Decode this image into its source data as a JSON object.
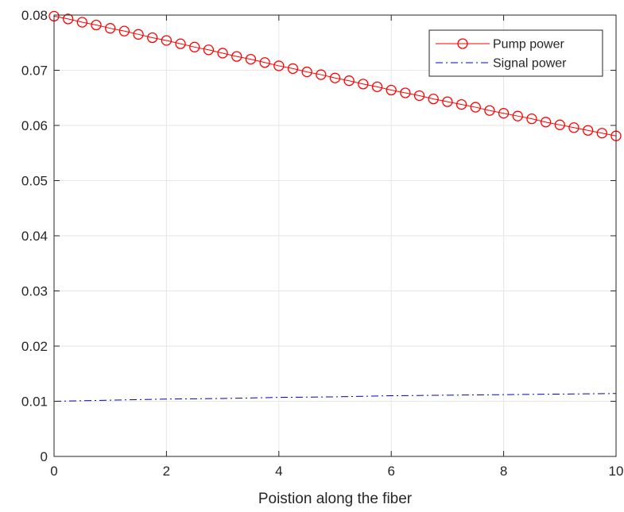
{
  "chart_data": {
    "type": "line",
    "title": "",
    "xlabel": "Poistion along the fiber",
    "ylabel": "",
    "xlim": [
      0,
      10
    ],
    "ylim": [
      0,
      0.08
    ],
    "xticks": [
      0,
      2,
      4,
      6,
      8,
      10
    ],
    "xtick_labels": [
      "0",
      "2",
      "4",
      "6",
      "8",
      "10"
    ],
    "yticks": [
      0,
      0.01,
      0.02,
      0.03,
      0.04,
      0.05,
      0.06,
      0.07,
      0.08
    ],
    "ytick_labels": [
      "0",
      "0.01",
      "0.02",
      "0.03",
      "0.04",
      "0.05",
      "0.06",
      "0.07",
      "0.08"
    ],
    "grid": true,
    "legend_position": "top-right",
    "series": [
      {
        "name": "Pump power",
        "color": "#ff0000",
        "line_style": "solid",
        "marker": "circle",
        "x": [
          0,
          0.25,
          0.5,
          0.75,
          1,
          1.25,
          1.5,
          1.75,
          2,
          2.25,
          2.5,
          2.75,
          3,
          3.25,
          3.5,
          3.75,
          4,
          4.25,
          4.5,
          4.75,
          5,
          5.25,
          5.5,
          5.75,
          6,
          6.25,
          6.5,
          6.75,
          7,
          7.25,
          7.5,
          7.75,
          8,
          8.25,
          8.5,
          8.75,
          9,
          9.25,
          9.5,
          9.75,
          10
        ],
        "values": [
          0.0798,
          0.0793,
          0.0787,
          0.0782,
          0.0776,
          0.0771,
          0.0765,
          0.0759,
          0.0754,
          0.0748,
          0.0742,
          0.0737,
          0.0731,
          0.0725,
          0.072,
          0.0714,
          0.0708,
          0.0703,
          0.0697,
          0.0692,
          0.0686,
          0.0681,
          0.0675,
          0.067,
          0.0664,
          0.0659,
          0.0654,
          0.0648,
          0.0643,
          0.0638,
          0.0633,
          0.0627,
          0.0622,
          0.0617,
          0.0612,
          0.0606,
          0.0601,
          0.0596,
          0.0591,
          0.0586,
          0.0581
        ]
      },
      {
        "name": "Signal power",
        "color": "#0000cc",
        "line_style": "dash-dot",
        "marker": "none",
        "x": [
          0,
          1,
          2,
          3,
          4,
          5,
          6,
          7,
          8,
          9,
          10
        ],
        "values": [
          0.01,
          0.0102,
          0.0104,
          0.0105,
          0.0107,
          0.0108,
          0.011,
          0.0111,
          0.0112,
          0.0113,
          0.0114
        ]
      }
    ]
  }
}
